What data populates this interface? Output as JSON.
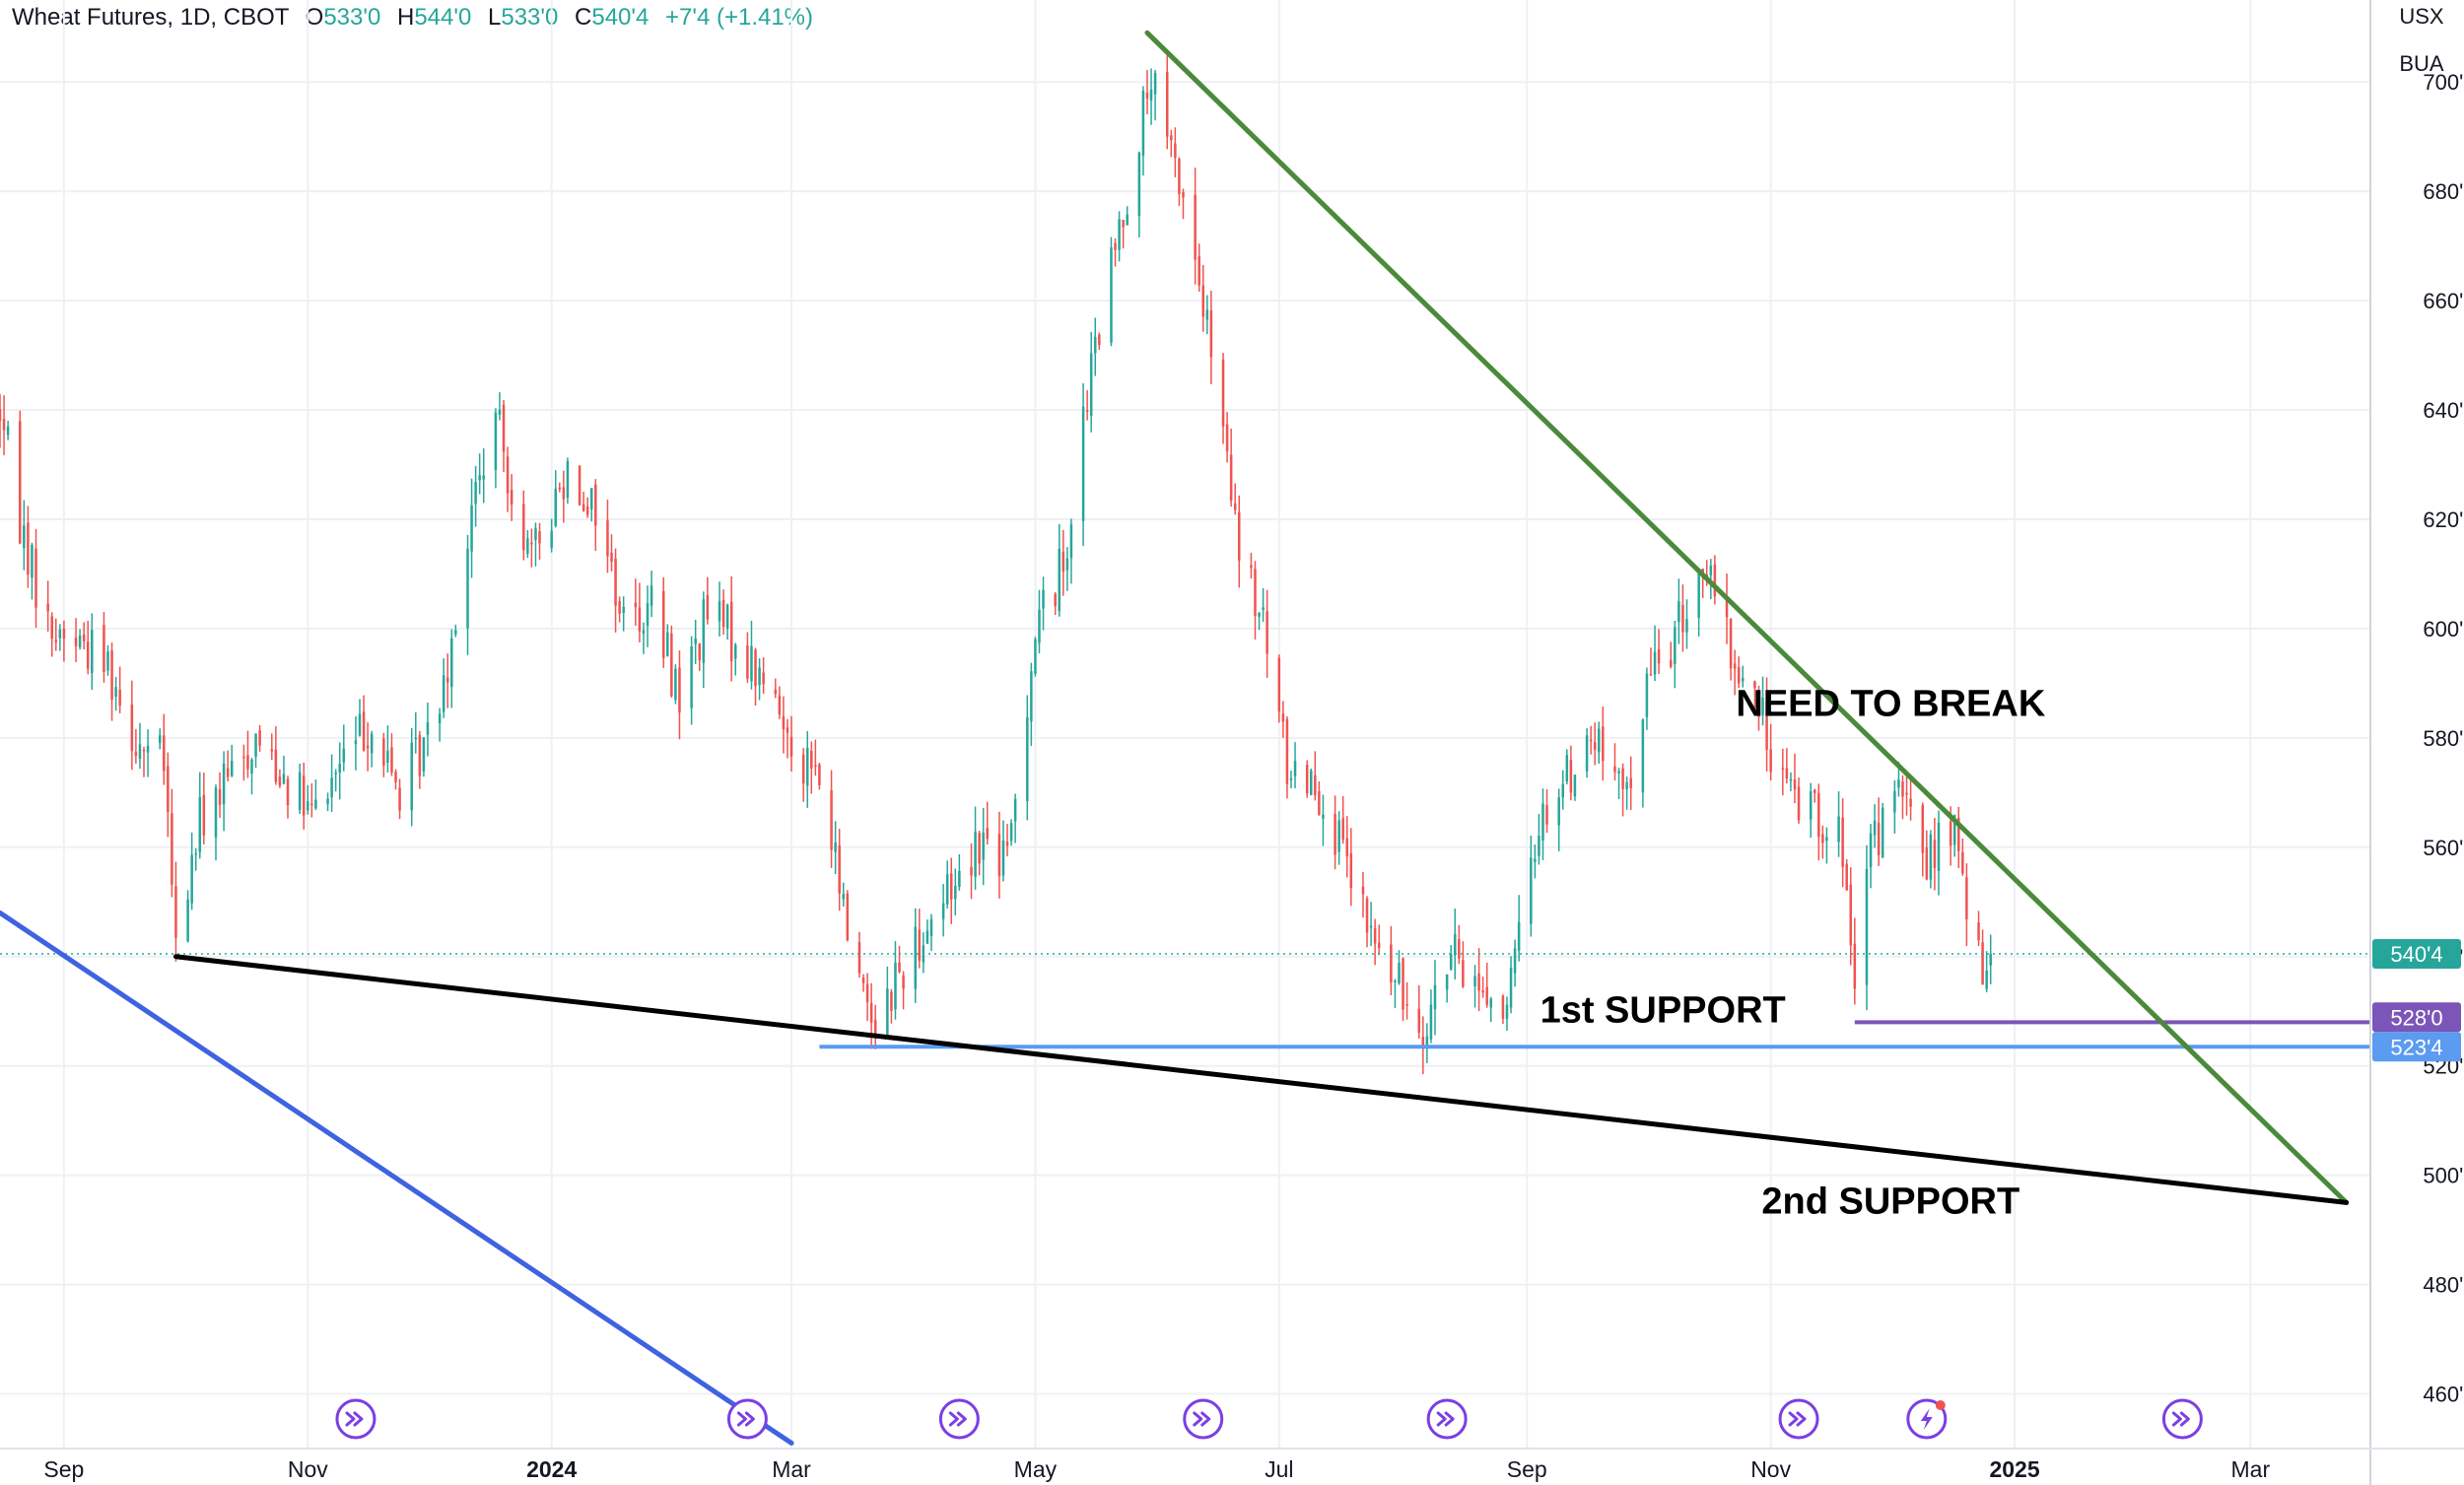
{
  "header": {
    "symbol": "Wheat Futures, 1D, CBOT",
    "o_label": "O",
    "o_value": "533'0",
    "h_label": "H",
    "h_value": "544'0",
    "l_label": "L",
    "l_value": "533'0",
    "c_label": "C",
    "c_value": "540'4",
    "change": "+7'4 (+1.41%)"
  },
  "units": {
    "currency": "USX",
    "unit": "BUA"
  },
  "colors": {
    "up": "#26a69a",
    "down": "#ef5350",
    "downtrend": "#4a8a3a",
    "support_line": "#000000",
    "blue_line": "#3f63e0",
    "first_support": "#5b9bf0",
    "purple_line": "#7b55b8",
    "price_label_green": "#26a69a",
    "grid": "#eef0f3"
  },
  "chart_data": {
    "type": "candlestick",
    "title": "Wheat Futures, 1D, CBOT",
    "ylim": [
      450,
      715
    ],
    "y_ticks": [
      "460'0",
      "480'0",
      "500'0",
      "520'0",
      "540'0",
      "560'0",
      "580'0",
      "600'0",
      "620'0",
      "640'0",
      "660'0",
      "680'0",
      "700'0"
    ],
    "y_tick_values": [
      460,
      480,
      500,
      520,
      540,
      560,
      580,
      600,
      620,
      640,
      660,
      680,
      700
    ],
    "x_ticks": [
      "Sep",
      "Nov",
      "2024",
      "Mar",
      "May",
      "Jul",
      "Sep",
      "Nov",
      "2025",
      "Mar"
    ],
    "x_tick_dates": [
      "2023-09-01",
      "2023-11-01",
      "2024-01-01",
      "2024-03-01",
      "2024-05-01",
      "2024-07-01",
      "2024-09-01",
      "2024-11-01",
      "2025-01-01",
      "2025-03-01"
    ],
    "xlim": [
      "2023-08-16",
      "2025-03-31"
    ],
    "price_path": [
      [
        "2023-08-16",
        640
      ],
      [
        "2023-08-21",
        620
      ],
      [
        "2023-08-28",
        600
      ],
      [
        "2023-09-05",
        598
      ],
      [
        "2023-09-12",
        594
      ],
      [
        "2023-09-19",
        580
      ],
      [
        "2023-09-26",
        575
      ],
      [
        "2023-09-29",
        541
      ],
      [
        "2023-10-05",
        565
      ],
      [
        "2023-10-12",
        572
      ],
      [
        "2023-10-19",
        580
      ],
      [
        "2023-10-26",
        574
      ],
      [
        "2023-11-02",
        565
      ],
      [
        "2023-11-09",
        575
      ],
      [
        "2023-11-16",
        583
      ],
      [
        "2023-11-24",
        570
      ],
      [
        "2023-12-01",
        580
      ],
      [
        "2023-12-06",
        595
      ],
      [
        "2023-12-13",
        625
      ],
      [
        "2023-12-18",
        638
      ],
      [
        "2023-12-27",
        612
      ],
      [
        "2024-01-05",
        630
      ],
      [
        "2024-01-12",
        622
      ],
      [
        "2024-01-19",
        602
      ],
      [
        "2024-01-26",
        604
      ],
      [
        "2024-02-02",
        588
      ],
      [
        "2024-02-09",
        603
      ],
      [
        "2024-02-16",
        598
      ],
      [
        "2024-02-23",
        590
      ],
      [
        "2024-03-01",
        580
      ],
      [
        "2024-03-08",
        572
      ],
      [
        "2024-03-15",
        545
      ],
      [
        "2024-03-22",
        528
      ],
      [
        "2024-03-27",
        536
      ],
      [
        "2024-04-03",
        545
      ],
      [
        "2024-04-10",
        553
      ],
      [
        "2024-04-17",
        562
      ],
      [
        "2024-04-24",
        557
      ],
      [
        "2024-05-01",
        600
      ],
      [
        "2024-05-08",
        612
      ],
      [
        "2024-05-15",
        647
      ],
      [
        "2024-05-22",
        673
      ],
      [
        "2024-05-28",
        694
      ],
      [
        "2024-05-30",
        700
      ],
      [
        "2024-06-03",
        688
      ],
      [
        "2024-06-07",
        680
      ],
      [
        "2024-06-14",
        650
      ],
      [
        "2024-06-21",
        613
      ],
      [
        "2024-06-27",
        600
      ],
      [
        "2024-07-03",
        575
      ],
      [
        "2024-07-10",
        573
      ],
      [
        "2024-07-16",
        560
      ],
      [
        "2024-07-23",
        545
      ],
      [
        "2024-07-30",
        535
      ],
      [
        "2024-08-06",
        528
      ],
      [
        "2024-08-13",
        540
      ],
      [
        "2024-08-20",
        535
      ],
      [
        "2024-08-27",
        530
      ],
      [
        "2024-09-04",
        565
      ],
      [
        "2024-09-11",
        573
      ],
      [
        "2024-09-18",
        580
      ],
      [
        "2024-09-25",
        568
      ],
      [
        "2024-10-02",
        592
      ],
      [
        "2024-10-09",
        600
      ],
      [
        "2024-10-15",
        612
      ],
      [
        "2024-10-22",
        595
      ],
      [
        "2024-10-29",
        585
      ],
      [
        "2024-11-05",
        570
      ],
      [
        "2024-11-12",
        568
      ],
      [
        "2024-11-19",
        560
      ],
      [
        "2024-11-22",
        530
      ],
      [
        "2024-11-26",
        560
      ],
      [
        "2024-12-03",
        570
      ],
      [
        "2024-12-10",
        558
      ],
      [
        "2024-12-17",
        563
      ],
      [
        "2024-12-20",
        548
      ],
      [
        "2024-12-24",
        535
      ],
      [
        "2024-12-26",
        540
      ]
    ],
    "trendlines": [
      {
        "name": "downtrend",
        "from": [
          "2024-05-29",
          709
        ],
        "to": [
          "2025-03-25",
          495
        ]
      },
      {
        "name": "support",
        "from": [
          "2023-09-29",
          540
        ],
        "to": [
          "2025-03-25",
          495
        ]
      },
      {
        "name": "blue-trend",
        "from": [
          "2023-08-16",
          548
        ],
        "to": [
          "2024-03-01",
          451
        ]
      }
    ],
    "hlines": [
      {
        "name": "1st-support",
        "value": 523.5,
        "from": "2024-03-08"
      },
      {
        "name": "purple-level",
        "value": 528,
        "from": "2024-11-22"
      }
    ],
    "last_price_line": 540.5,
    "price_labels": [
      {
        "text": "540'4",
        "value": 540.5
      },
      {
        "text": "528'0",
        "value": 528
      },
      {
        "text": "523'4",
        "value": 523.5
      }
    ],
    "annotations": [
      {
        "text": "NEED TO BREAK",
        "date": "2024-12-01",
        "value": 584
      },
      {
        "text": "1st SUPPORT",
        "date": "2024-10-05",
        "value": 528
      },
      {
        "text": "2nd SUPPORT",
        "date": "2024-12-01",
        "value": 493
      }
    ],
    "event_markers": [
      "2023-11-13",
      "2024-02-19",
      "2024-04-12",
      "2024-06-12",
      "2024-08-12",
      "2024-11-08",
      "2024-12-10",
      "2025-02-12"
    ],
    "grid": true
  }
}
